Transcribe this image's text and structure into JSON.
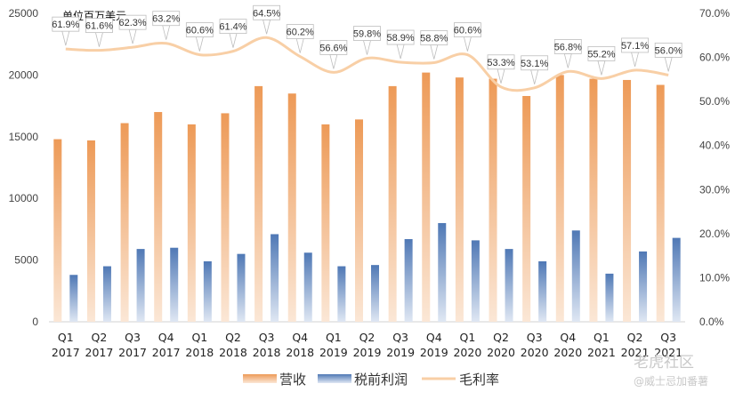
{
  "chart_data": {
    "type": "bar",
    "unit_note": "单位百万美元",
    "categories": [
      [
        "Q1",
        "2017"
      ],
      [
        "Q2",
        "2017"
      ],
      [
        "Q3",
        "2017"
      ],
      [
        "Q4",
        "2017"
      ],
      [
        "Q1",
        "2018"
      ],
      [
        "Q2",
        "2018"
      ],
      [
        "Q3",
        "2018"
      ],
      [
        "Q4",
        "2018"
      ],
      [
        "Q1",
        "2019"
      ],
      [
        "Q2",
        "2019"
      ],
      [
        "Q3",
        "2019"
      ],
      [
        "Q4",
        "2019"
      ],
      [
        "Q1",
        "2020"
      ],
      [
        "Q2",
        "2020"
      ],
      [
        "Q3",
        "2020"
      ],
      [
        "Q4",
        "2020"
      ],
      [
        "Q1",
        "2021"
      ],
      [
        "Q2",
        "2021"
      ],
      [
        "Q3",
        "2021"
      ]
    ],
    "series": [
      {
        "name": "营收",
        "type": "bar",
        "axis": "left",
        "color": "#ed9a57",
        "values": [
          14800,
          14700,
          16100,
          17000,
          16000,
          16900,
          19100,
          18500,
          16000,
          16400,
          19100,
          20200,
          19800,
          19700,
          18300,
          20000,
          19700,
          19600,
          19200
        ]
      },
      {
        "name": "税前利润",
        "type": "bar",
        "axis": "left",
        "color": "#4f78b5",
        "values": [
          3800,
          4500,
          5900,
          6000,
          4900,
          5500,
          7100,
          5600,
          4500,
          4600,
          6700,
          8000,
          6600,
          5900,
          4900,
          7400,
          3900,
          5700,
          6800
        ]
      },
      {
        "name": "毛利率",
        "type": "line",
        "axis": "right",
        "color": "#f8cfa6",
        "values": [
          61.9,
          61.6,
          62.3,
          63.2,
          60.6,
          61.4,
          64.5,
          60.2,
          56.6,
          59.8,
          58.9,
          58.8,
          60.6,
          53.3,
          53.1,
          56.8,
          55.2,
          57.1,
          56.0
        ],
        "labels": [
          "61.9%",
          "61.6%",
          "62.3%",
          "63.2%",
          "60.6%",
          "61.4%",
          "64.5%",
          "60.2%",
          "56.6%",
          "59.8%",
          "58.9%",
          "58.8%",
          "60.6%",
          "53.3%",
          "53.1%",
          "56.8%",
          "55.2%",
          "57.1%",
          "56.0%"
        ]
      }
    ],
    "left_axis": {
      "min": 0,
      "max": 25000,
      "ticks": [
        "0",
        "5000",
        "10000",
        "15000",
        "20000",
        "25000"
      ]
    },
    "right_axis": {
      "min": 0,
      "max": 70,
      "ticks": [
        "0.0%",
        "10.0%",
        "20.0%",
        "30.0%",
        "40.0%",
        "50.0%",
        "60.0%",
        "70.0%"
      ]
    },
    "legend": {
      "position": "bottom",
      "items": [
        "营收",
        "税前利润",
        "毛利率"
      ]
    },
    "grid": false
  },
  "watermark": {
    "line1": "老虎社区",
    "line2": "@威士忌加番薯"
  }
}
